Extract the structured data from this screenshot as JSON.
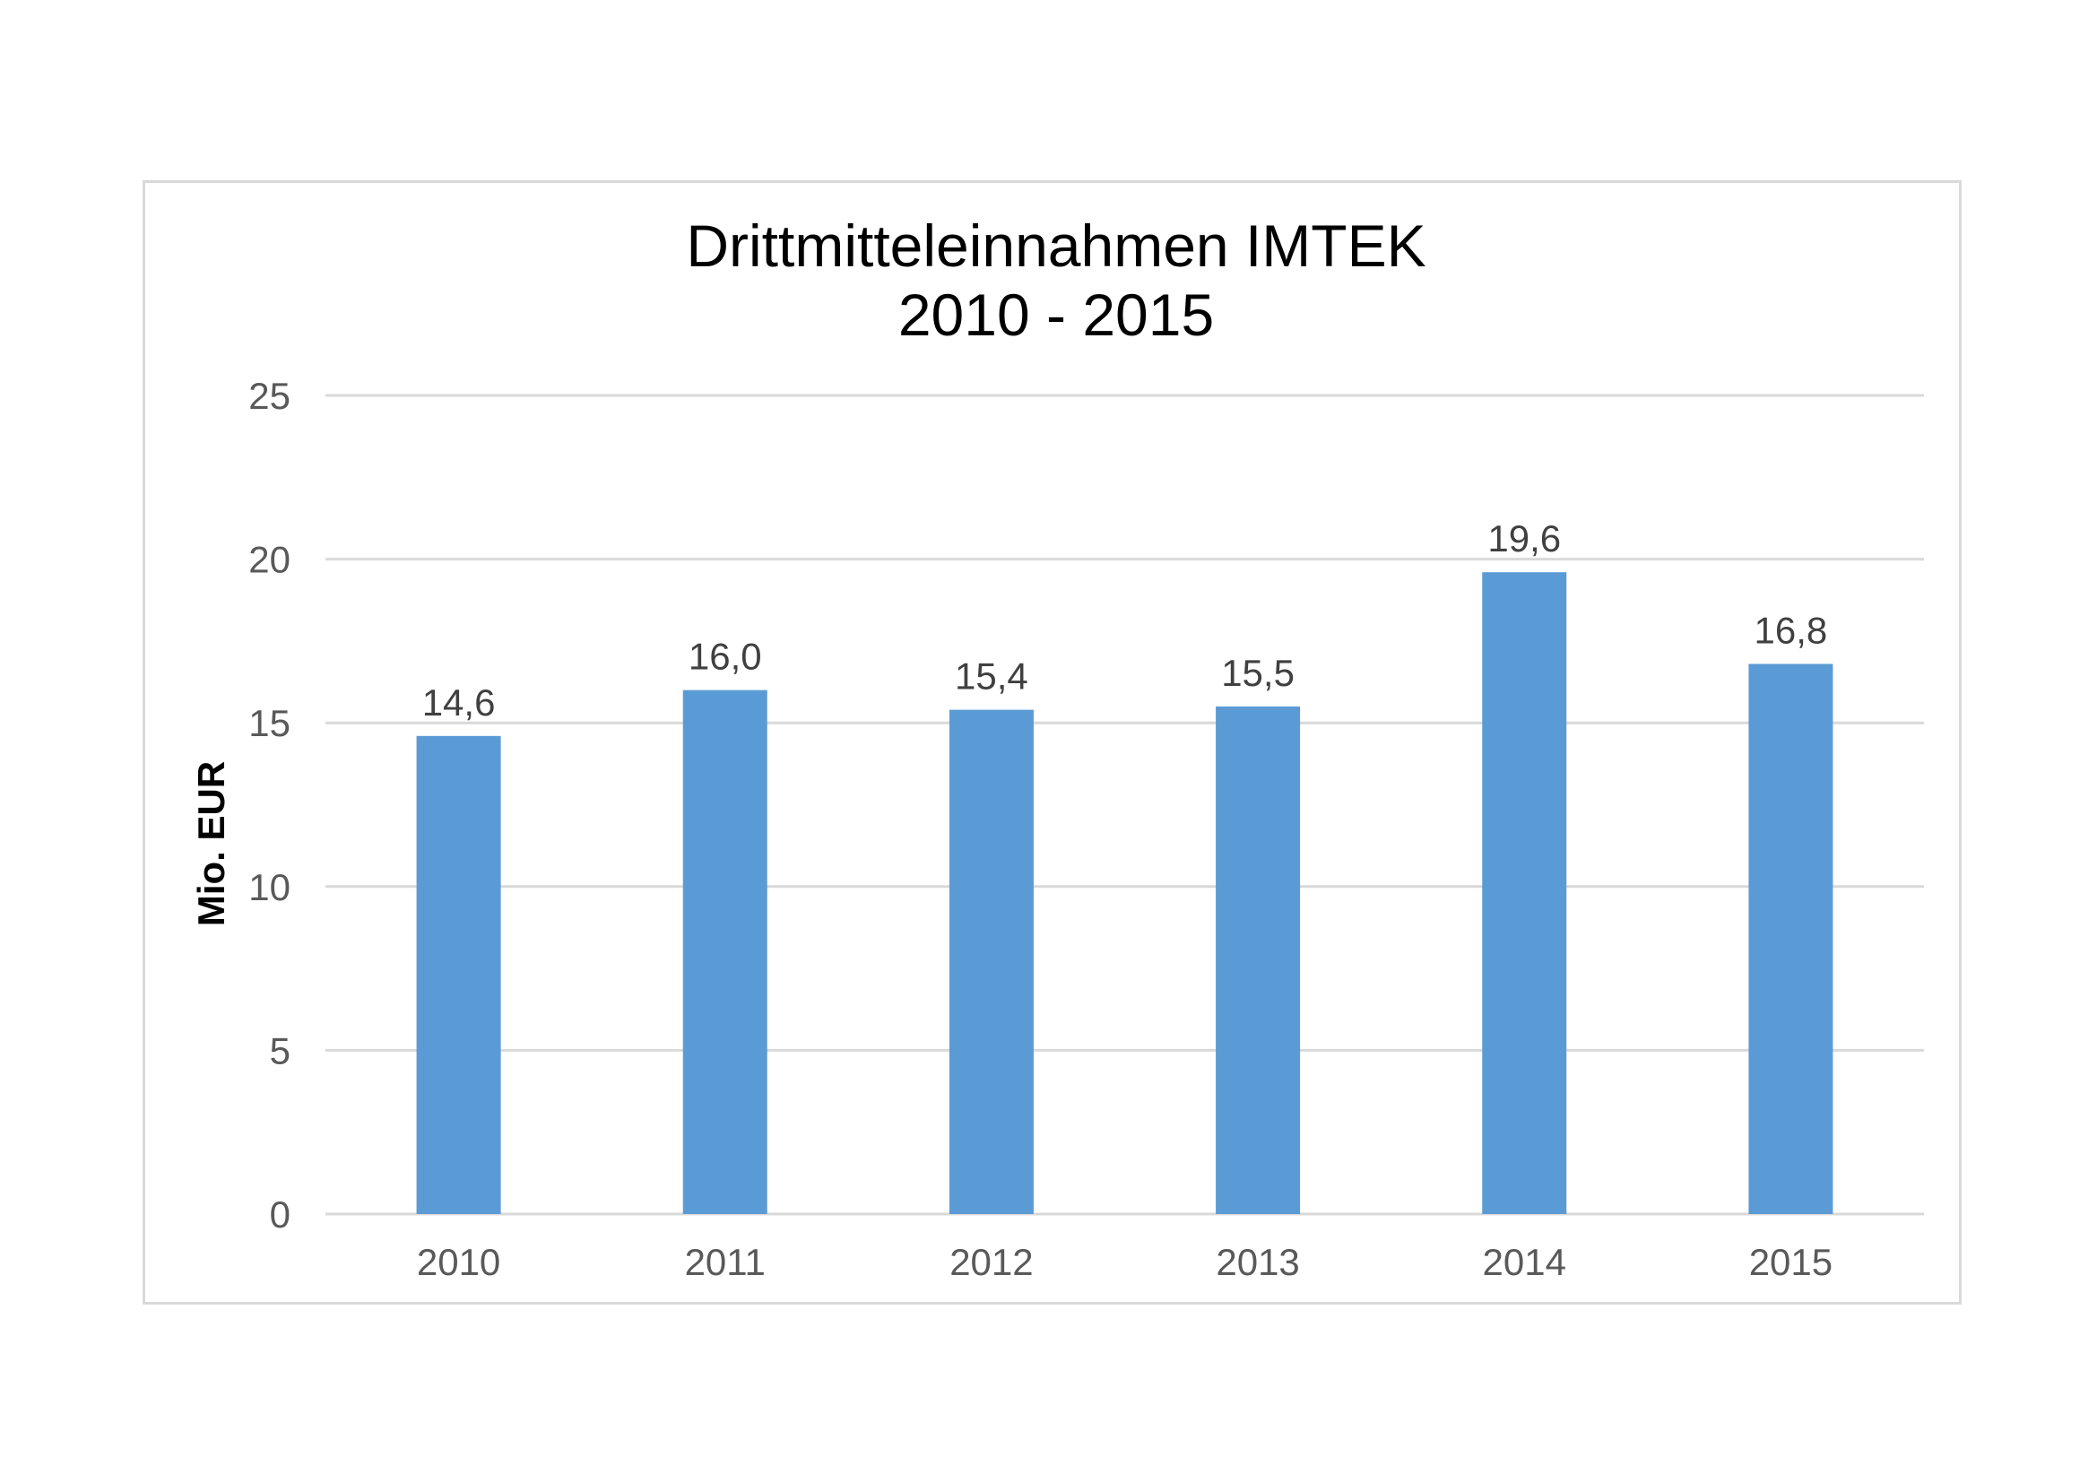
{
  "chart_data": {
    "type": "bar",
    "title": [
      "Drittmitteleinnahmen IMTEK",
      "2010 - 2015"
    ],
    "xlabel": "",
    "ylabel": "Mio. EUR",
    "categories": [
      "2010",
      "2011",
      "2012",
      "2013",
      "2014",
      "2015"
    ],
    "values": [
      14.6,
      16.0,
      15.4,
      15.5,
      19.6,
      16.8
    ],
    "data_labels": [
      "14,6",
      "16,0",
      "15,4",
      "15,5",
      "19,6",
      "16,8"
    ],
    "ylim": [
      0,
      25
    ],
    "yticks": [
      0,
      5,
      10,
      15,
      20,
      25
    ],
    "ytick_labels": [
      "0",
      "5",
      "10",
      "15",
      "20",
      "25"
    ],
    "grid": true,
    "legend": "none",
    "bar_color": "#5b9bd5",
    "grid_color": "#d9d9d9"
  }
}
